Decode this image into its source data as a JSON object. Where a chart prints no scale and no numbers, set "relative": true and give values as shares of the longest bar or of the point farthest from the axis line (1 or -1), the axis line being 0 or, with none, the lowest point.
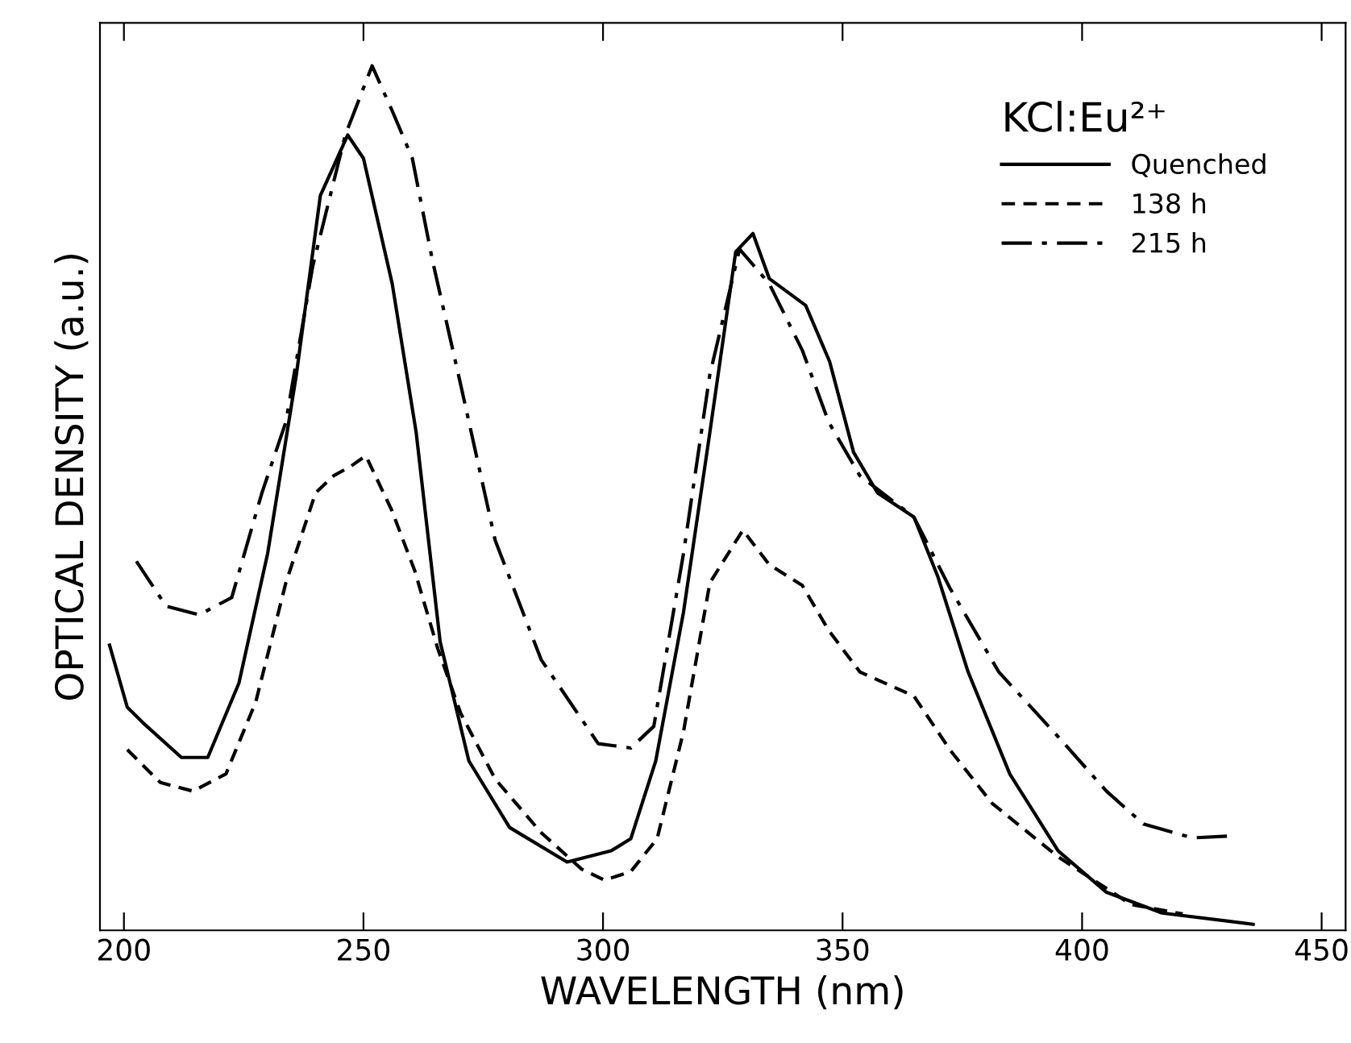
{
  "chart_data": {
    "type": "line",
    "relative": true,
    "xlabel": "WAVELENGTH (nm)",
    "ylabel": "OPTICAL DENSITY (a.u.)",
    "legend_title": "KCl:Eu²⁺",
    "legend": "top right",
    "tick_labels": "x",
    "grid": false,
    "xlim": [
      195,
      455
    ],
    "xticks": [
      200,
      250,
      300,
      350,
      400,
      450
    ],
    "series": [
      {
        "name": "Quenched",
        "color": "#000000",
        "line_style": "solid",
        "x": [
          197,
          200.7,
          204,
          212,
          217.5,
          224,
          230,
          236,
          241,
          246.7,
          250,
          256,
          261,
          266,
          272,
          280.5,
          292.5,
          301.7,
          305.8,
          311,
          316.8,
          322.3,
          327.7,
          331.3,
          334.7,
          342.3,
          347.3,
          352.3,
          357.3,
          364.9,
          369.9,
          376.2,
          384.9,
          395,
          405.1,
          416.7,
          435.7
        ],
        "values": [
          0.33,
          0.258,
          0.24,
          0.2,
          0.2,
          0.286,
          0.436,
          0.643,
          0.85,
          0.92,
          0.893,
          0.748,
          0.576,
          0.334,
          0.196,
          0.119,
          0.079,
          0.092,
          0.106,
          0.196,
          0.368,
          0.576,
          0.785,
          0.806,
          0.754,
          0.723,
          0.658,
          0.553,
          0.506,
          0.478,
          0.409,
          0.299,
          0.181,
          0.092,
          0.044,
          0.02,
          0.007
        ]
      },
      {
        "name": "138 h",
        "color": "#000000",
        "line_style": "dashed",
        "x": [
          200.7,
          207.6,
          214.4,
          221.3,
          227.5,
          233.8,
          240,
          243.8,
          247.4,
          250.5,
          255.9,
          260.7,
          265.5,
          270.3,
          277.5,
          287.1,
          295.5,
          300.3,
          305.8,
          311.3,
          316.8,
          322.3,
          329.2,
          334.7,
          341.6,
          347.1,
          353.6,
          364.9,
          372.4,
          381.2,
          395,
          410.2,
          421
        ],
        "values": [
          0.209,
          0.171,
          0.161,
          0.181,
          0.264,
          0.402,
          0.506,
          0.526,
          0.537,
          0.549,
          0.486,
          0.416,
          0.326,
          0.251,
          0.175,
          0.113,
          0.071,
          0.058,
          0.068,
          0.106,
          0.23,
          0.402,
          0.463,
          0.423,
          0.399,
          0.347,
          0.299,
          0.271,
          0.209,
          0.147,
          0.085,
          0.03,
          0.019
        ]
      },
      {
        "name": "215 h",
        "color": "#000000",
        "line_style": "dashdot",
        "x": [
          202.6,
          208.8,
          215.7,
          222.5,
          228.8,
          233.8,
          239.4,
          246.2,
          251.8,
          256,
          260.2,
          264.4,
          270.3,
          277.5,
          287.1,
          299,
          305.8,
          310.6,
          316.8,
          322.3,
          328.5,
          334.7,
          341.6,
          347.1,
          353.6,
          364.9,
          372.4,
          382.6,
          395,
          405.1,
          412.8,
          423,
          430.6
        ],
        "values": [
          0.427,
          0.375,
          0.365,
          0.385,
          0.506,
          0.588,
          0.768,
          0.92,
          1,
          0.948,
          0.893,
          0.775,
          0.631,
          0.451,
          0.313,
          0.216,
          0.211,
          0.236,
          0.436,
          0.643,
          0.788,
          0.748,
          0.671,
          0.588,
          0.526,
          0.478,
          0.396,
          0.299,
          0.224,
          0.161,
          0.123,
          0.107,
          0.109
        ]
      }
    ]
  }
}
